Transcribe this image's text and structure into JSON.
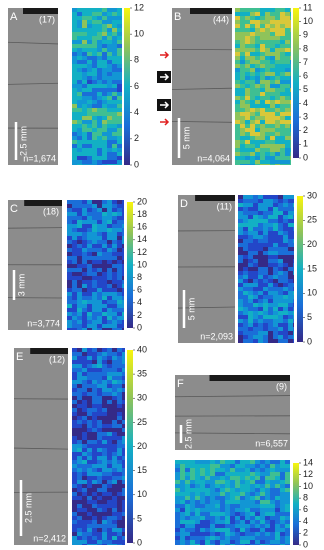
{
  "panels": [
    {
      "letter": "A",
      "count": "(17)",
      "scale": "2.5 mm",
      "n": "n=1,674",
      "ticks": [
        12,
        10,
        8,
        6,
        4,
        2,
        0
      ]
    },
    {
      "letter": "B",
      "count": "(44)",
      "scale": "5 mm",
      "n": "n=4,064",
      "ticks": [
        11,
        10,
        9,
        8,
        7,
        6,
        5,
        4,
        3,
        2,
        1,
        0
      ]
    },
    {
      "letter": "C",
      "count": "(18)",
      "scale": "3 mm",
      "n": "n=3,774",
      "ticks": [
        20,
        18,
        16,
        14,
        12,
        10,
        8,
        6,
        4,
        2,
        0
      ]
    },
    {
      "letter": "D",
      "count": "(11)",
      "scale": "5 mm",
      "n": "n=2,093",
      "ticks": [
        30,
        25,
        20,
        15,
        10,
        5,
        0
      ]
    },
    {
      "letter": "E",
      "count": "(12)",
      "scale": "2.5 mm",
      "n": "n=2,412",
      "ticks": [
        40,
        35,
        30,
        25,
        20,
        15,
        10,
        5,
        0
      ]
    },
    {
      "letter": "F",
      "count": "(9)",
      "scale": "2.5 mm",
      "n": "n=6,557",
      "ticks": [
        14,
        12,
        10,
        8,
        6,
        4,
        2,
        0
      ]
    }
  ]
}
